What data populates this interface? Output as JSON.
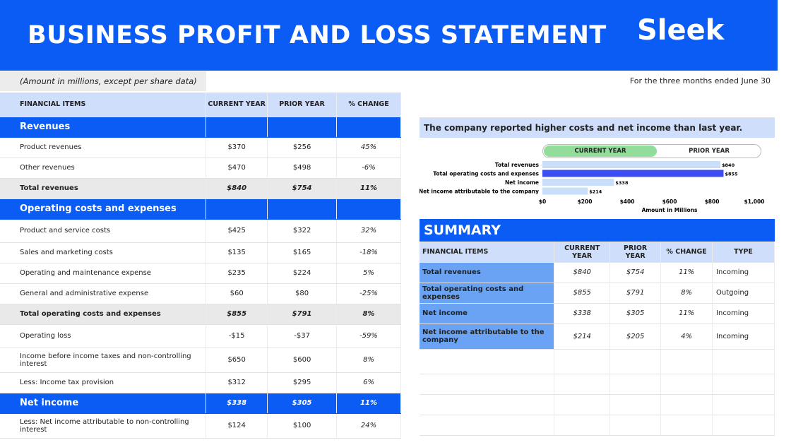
{
  "header": {
    "title": "BUSINESS PROFIT AND LOSS STATEMENT",
    "logo": "Sleek"
  },
  "subbar": {
    "note": "(Amount in millions, except per share data)",
    "period": "For the three months ended June 30"
  },
  "statement": {
    "columns": [
      "FINANCIAL ITEMS",
      "CURRENT YEAR",
      "PRIOR YEAR",
      "% CHANGE"
    ],
    "rows": [
      {
        "kind": "sec",
        "label": "Revenues",
        "cur": "",
        "pri": "",
        "chg": ""
      },
      {
        "kind": "row",
        "label": "Product revenues",
        "cur": "$370",
        "pri": "$256",
        "chg": "45%"
      },
      {
        "kind": "row",
        "label": "Other revenues",
        "cur": "$470",
        "pri": "$498",
        "chg": "-6%"
      },
      {
        "kind": "tot",
        "label": "Total revenues",
        "cur": "$840",
        "pri": "$754",
        "chg": "11%"
      },
      {
        "kind": "sec",
        "label": "Operating costs and expenses",
        "cur": "",
        "pri": "",
        "chg": ""
      },
      {
        "kind": "row",
        "label": "Product and service costs",
        "cur": "$425",
        "pri": "$322",
        "chg": "32%"
      },
      {
        "kind": "row",
        "label": "Sales and marketing costs",
        "cur": "$135",
        "pri": "$165",
        "chg": "-18%"
      },
      {
        "kind": "row",
        "label": "Operating and maintenance expense",
        "cur": "$235",
        "pri": "$224",
        "chg": "5%"
      },
      {
        "kind": "row",
        "label": "General and administrative expense",
        "cur": "$60",
        "pri": "$80",
        "chg": "-25%"
      },
      {
        "kind": "tot",
        "label": "Total operating costs and expenses",
        "cur": "$855",
        "pri": "$791",
        "chg": "8%"
      },
      {
        "kind": "row",
        "label": "Operating loss",
        "cur": "-$15",
        "pri": "-$37",
        "chg": "-59%"
      },
      {
        "kind": "row",
        "label": "Income before income taxes and non-controlling interest",
        "cur": "$650",
        "pri": "$600",
        "chg": "8%"
      },
      {
        "kind": "row",
        "label": "Less: Income tax provision",
        "cur": "$312",
        "pri": "$295",
        "chg": "6%"
      },
      {
        "kind": "net",
        "label": "Net income",
        "cur": "$338",
        "pri": "$305",
        "chg": "11%"
      },
      {
        "kind": "row",
        "label": "Less: Net income attributable to non-controlling interest",
        "cur": "$124",
        "pri": "$100",
        "chg": "24%"
      }
    ]
  },
  "chart_caption": "The company reported higher costs and net income than last year.",
  "legend": {
    "current": "CURRENT YEAR",
    "prior": "PRIOR YEAR"
  },
  "chart_data": {
    "type": "bar",
    "orientation": "horizontal",
    "categories": [
      "Total revenues",
      "Total operating costs and expenses",
      "Net income",
      "Net income attributable to the company"
    ],
    "values": [
      840,
      855,
      338,
      214
    ],
    "value_labels": [
      "$840",
      "$855",
      "$338",
      "$214"
    ],
    "highlight_color": "#3d4df5",
    "bar_color": "#c8def9",
    "xlim": [
      0,
      1000
    ],
    "xticks": [
      "$0",
      "$200",
      "$400",
      "$600",
      "$800",
      "$1,000"
    ],
    "xlabel": "Amount in Millions",
    "grid": false
  },
  "summary": {
    "title": "SUMMARY",
    "columns": [
      "FINANCIAL ITEMS",
      "CURRENT YEAR",
      "PRIOR YEAR",
      "% CHANGE",
      "TYPE"
    ],
    "rows": [
      {
        "label": "Total revenues",
        "cur": "$840",
        "pri": "$754",
        "chg": "11%",
        "type": "Incoming"
      },
      {
        "label": "Total operating costs and expenses",
        "cur": "$855",
        "pri": "$791",
        "chg": "8%",
        "type": "Outgoing"
      },
      {
        "label": "Net income",
        "cur": "$338",
        "pri": "$305",
        "chg": "11%",
        "type": "Incoming"
      },
      {
        "label": "Net income attributable to the company",
        "cur": "$214",
        "pri": "$205",
        "chg": "4%",
        "type": "Incoming"
      }
    ]
  }
}
